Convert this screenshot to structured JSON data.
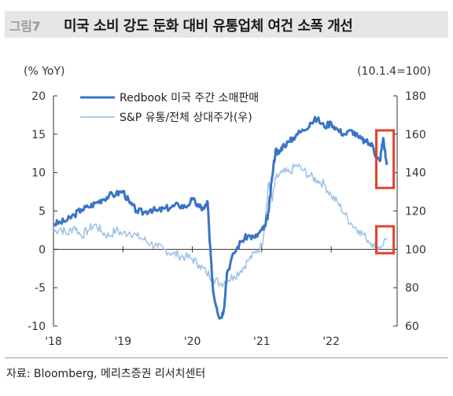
{
  "header": {
    "figure_label": "그림7",
    "title": "미국 소비 강도 둔화 대비 유통업체 여건 소폭 개선"
  },
  "source": "자료: Bloomberg, 메리츠증권 리서치센터",
  "colors": {
    "redbook": "#3a74c4",
    "snp_retail": "#9ec3ea",
    "highlight": "#e8402c",
    "axis": "#333333"
  },
  "chart_data": {
    "type": "line",
    "left_axis": {
      "unit": "(% YoY)",
      "ylim": [
        -10,
        20
      ],
      "ticks": [
        20,
        15,
        10,
        5,
        0,
        -5,
        -10
      ]
    },
    "right_axis": {
      "unit": "(10.1.4=100)",
      "ylim": [
        60,
        180
      ],
      "ticks": [
        180,
        160,
        140,
        120,
        100,
        80,
        60
      ]
    },
    "x_axis": {
      "range": [
        2018.0,
        2022.95
      ],
      "ticks": [
        {
          "label": "'18",
          "value": 2018.0
        },
        {
          "label": "'19",
          "value": 2019.0
        },
        {
          "label": "'20",
          "value": 2020.0
        },
        {
          "label": "'21",
          "value": 2021.0
        },
        {
          "label": "'22",
          "value": 2022.0
        }
      ]
    },
    "grid": false,
    "legend_position": "top-center",
    "series": [
      {
        "name": "Redbook 미국 주간 소매판매",
        "axis": "left",
        "x": [
          2018.0,
          2018.1,
          2018.2,
          2018.3,
          2018.4,
          2018.5,
          2018.6,
          2018.7,
          2018.8,
          2018.9,
          2019.0,
          2019.1,
          2019.2,
          2019.3,
          2019.4,
          2019.5,
          2019.6,
          2019.7,
          2019.8,
          2019.9,
          2020.0,
          2020.1,
          2020.17,
          2020.22,
          2020.25,
          2020.3,
          2020.35,
          2020.4,
          2020.45,
          2020.5,
          2020.6,
          2020.7,
          2020.8,
          2020.9,
          2021.0,
          2021.05,
          2021.1,
          2021.15,
          2021.2,
          2021.25,
          2021.3,
          2021.4,
          2021.5,
          2021.6,
          2021.7,
          2021.8,
          2021.9,
          2022.0,
          2022.1,
          2022.2,
          2022.3,
          2022.4,
          2022.5,
          2022.6,
          2022.65,
          2022.7,
          2022.75,
          2022.8
        ],
        "y": [
          3.3,
          3.5,
          3.8,
          4.5,
          5.2,
          5.5,
          6.0,
          6.5,
          7.0,
          7.2,
          7.6,
          6.0,
          5.0,
          4.8,
          5.2,
          5.0,
          5.3,
          5.5,
          5.8,
          5.5,
          6.5,
          5.5,
          5.3,
          6.2,
          1.0,
          -5.5,
          -7.5,
          -9.0,
          -8.0,
          -3.0,
          -0.5,
          1.0,
          1.8,
          1.5,
          2.5,
          3.0,
          5.0,
          9.5,
          13.0,
          12.5,
          13.5,
          14.0,
          15.0,
          15.5,
          16.5,
          17.0,
          16.0,
          16.5,
          15.5,
          15.0,
          15.5,
          14.5,
          14.0,
          13.5,
          12.0,
          11.5,
          14.5,
          11.0
        ]
      },
      {
        "name": "S&P 유통/전체 상대주가(우)",
        "axis": "right",
        "x": [
          2018.0,
          2018.1,
          2018.2,
          2018.3,
          2018.4,
          2018.5,
          2018.6,
          2018.7,
          2018.8,
          2018.9,
          2019.0,
          2019.1,
          2019.2,
          2019.3,
          2019.4,
          2019.5,
          2019.6,
          2019.7,
          2019.8,
          2019.9,
          2020.0,
          2020.1,
          2020.2,
          2020.3,
          2020.4,
          2020.5,
          2020.6,
          2020.7,
          2020.8,
          2020.9,
          2021.0,
          2021.05,
          2021.1,
          2021.15,
          2021.2,
          2021.3,
          2021.4,
          2021.5,
          2021.6,
          2021.7,
          2021.8,
          2021.9,
          2022.0,
          2022.1,
          2022.2,
          2022.3,
          2022.4,
          2022.5,
          2022.6,
          2022.7,
          2022.8
        ],
        "y": [
          109,
          111,
          108,
          112,
          107,
          110,
          113,
          109,
          107,
          110,
          108,
          109,
          107,
          105,
          103,
          101,
          100,
          98,
          97,
          96,
          95,
          92,
          88,
          85,
          82,
          84,
          86,
          89,
          94,
          98,
          102,
          115,
          135,
          125,
          137,
          140,
          140,
          144,
          141,
          138,
          136,
          134,
          128,
          124,
          118,
          113,
          110,
          106,
          103,
          101,
          106
        ]
      }
    ]
  }
}
